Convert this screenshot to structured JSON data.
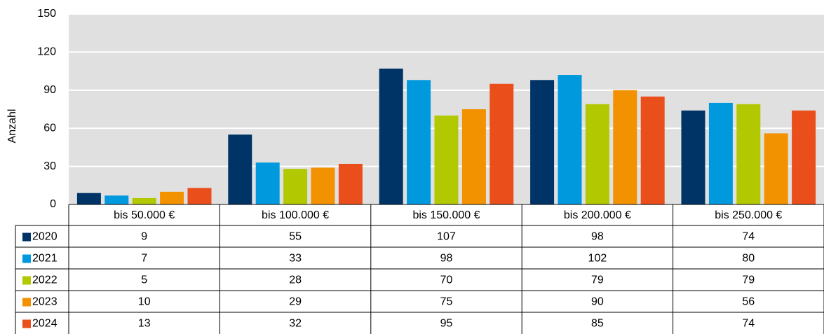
{
  "chart_data": {
    "type": "bar",
    "y_label": "Anzahl",
    "categories": [
      "bis 50.000 €",
      "bis 100.000 €",
      "bis 150.000 €",
      "bis 200.000 €",
      "bis 250.000 €"
    ],
    "series": [
      {
        "name": "2020",
        "color": "#003366",
        "values": [
          9,
          55,
          107,
          98,
          74
        ]
      },
      {
        "name": "2021",
        "color": "#0099dd",
        "values": [
          7,
          33,
          98,
          102,
          80
        ]
      },
      {
        "name": "2022",
        "color": "#b2c800",
        "values": [
          5,
          28,
          70,
          79,
          79
        ]
      },
      {
        "name": "2023",
        "color": "#f39200",
        "values": [
          10,
          29,
          75,
          90,
          56
        ]
      },
      {
        "name": "2024",
        "color": "#e94e1b",
        "values": [
          13,
          32,
          95,
          85,
          74
        ]
      }
    ],
    "ylim": [
      0,
      150
    ],
    "yticks": [
      0,
      30,
      60,
      90,
      120,
      150
    ],
    "grid": true
  }
}
